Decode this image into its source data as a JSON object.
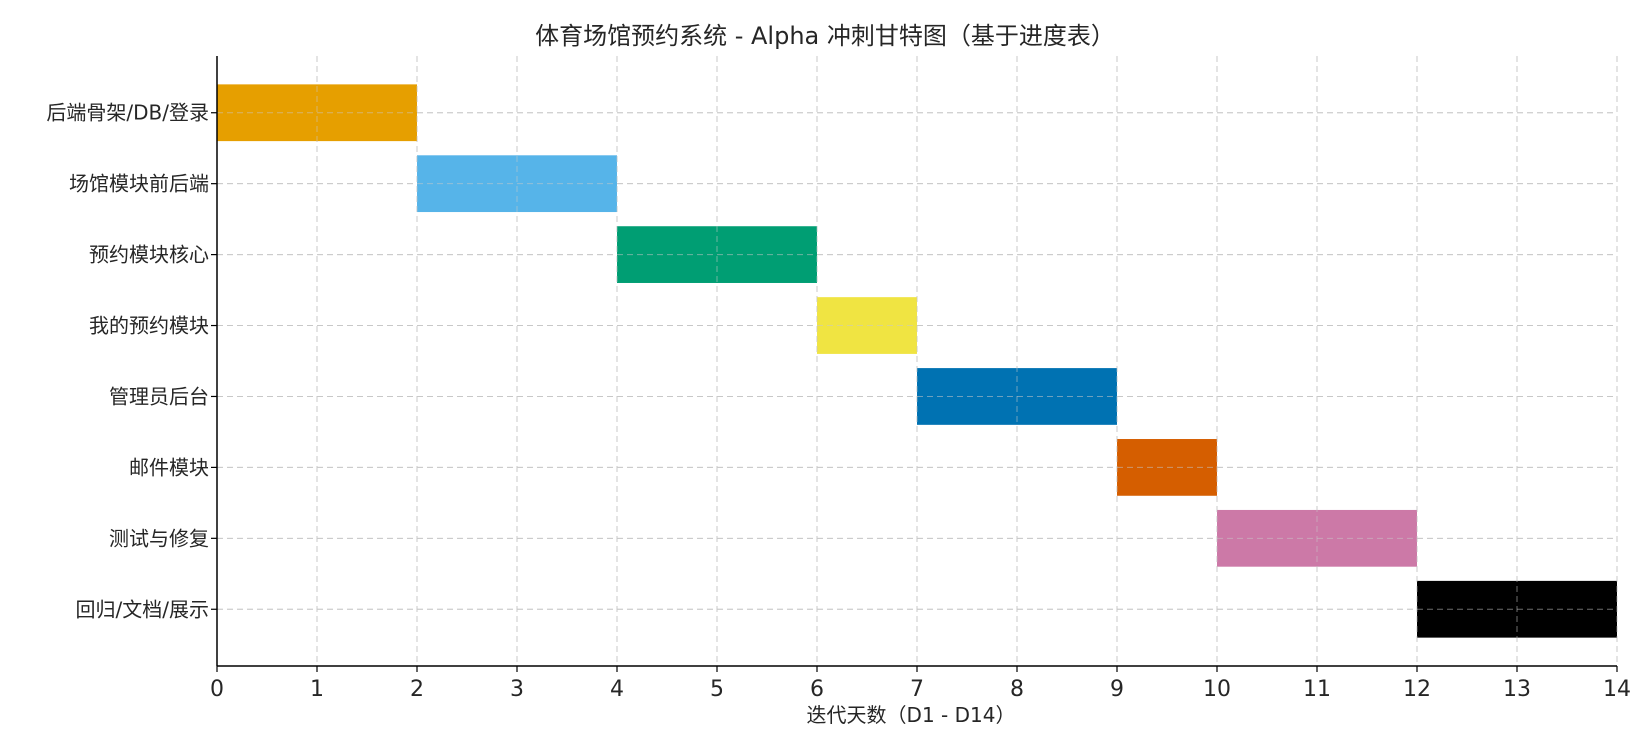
{
  "chart_data": {
    "type": "gantt",
    "title": "体育场馆预约系统 - Alpha 冲刺甘特图（基于进度表）",
    "xlabel": "迭代天数（D1 - D14）",
    "ylabel": "",
    "xlim": [
      0,
      14
    ],
    "xticks": [
      0,
      1,
      2,
      3,
      4,
      5,
      6,
      7,
      8,
      9,
      10,
      11,
      12,
      13,
      14
    ],
    "grid": true,
    "tasks": [
      {
        "name": "后端骨架/DB/登录",
        "start": 0,
        "end": 2,
        "color": "#E69F00"
      },
      {
        "name": "场馆模块前后端",
        "start": 2,
        "end": 4,
        "color": "#56B4E9"
      },
      {
        "name": "预约模块核心",
        "start": 4,
        "end": 6,
        "color": "#009E73"
      },
      {
        "name": "我的预约模块",
        "start": 6,
        "end": 7,
        "color": "#F0E442"
      },
      {
        "name": "管理员后台",
        "start": 7,
        "end": 9,
        "color": "#0072B2"
      },
      {
        "name": "邮件模块",
        "start": 9,
        "end": 10,
        "color": "#D55E00"
      },
      {
        "name": "测试与修复",
        "start": 10,
        "end": 12,
        "color": "#CC79A7"
      },
      {
        "name": "回归/文档/展示",
        "start": 12,
        "end": 14,
        "color": "#000000"
      }
    ]
  }
}
